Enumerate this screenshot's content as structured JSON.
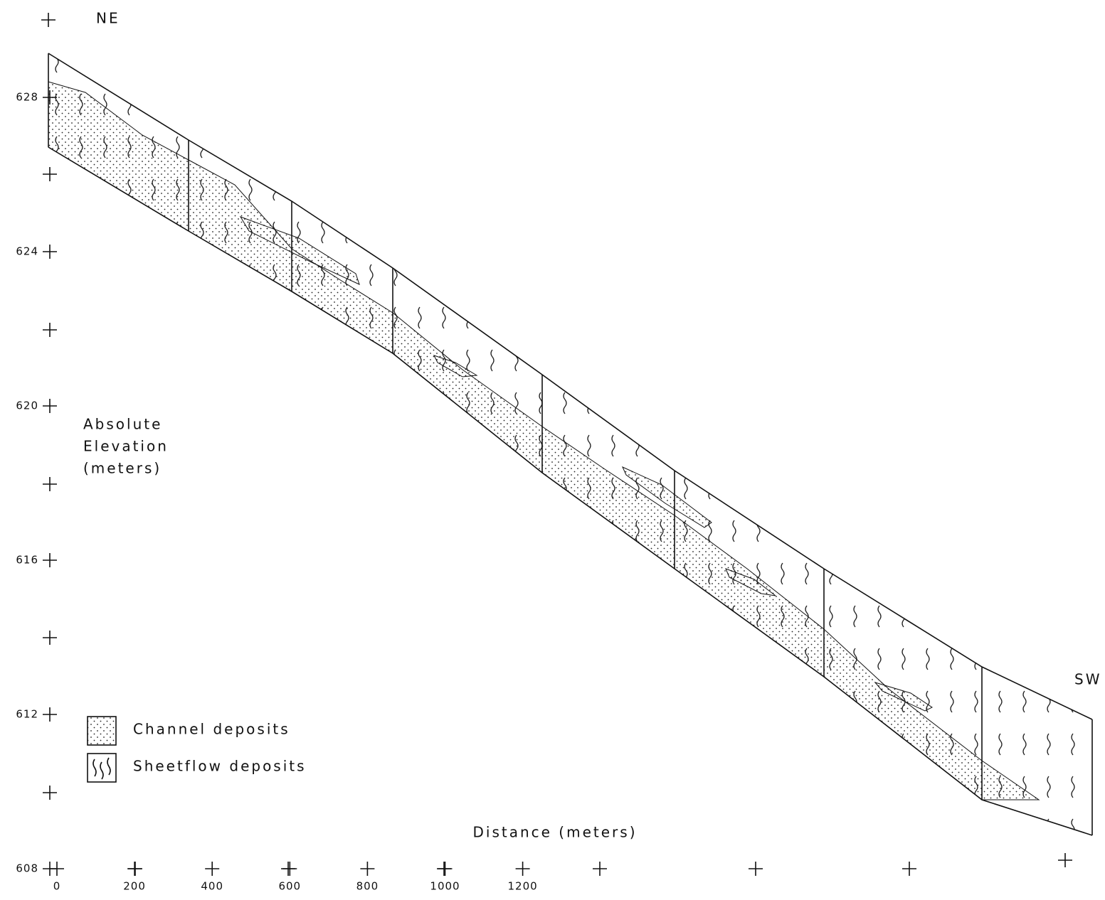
{
  "header": {
    "start_direction": "NE",
    "end_direction": "SW"
  },
  "y_axis": {
    "label": [
      "Absolute",
      "Elevation",
      "(meters)"
    ],
    "ticks": [
      628,
      624,
      620,
      616,
      612,
      608
    ]
  },
  "x_axis": {
    "label": "Distance (meters)",
    "ticks": [
      0,
      200,
      400,
      600,
      800,
      1000,
      1200
    ]
  },
  "legend": [
    {
      "label": "Channel deposits"
    },
    {
      "label": "Sheetflow deposits"
    }
  ]
}
